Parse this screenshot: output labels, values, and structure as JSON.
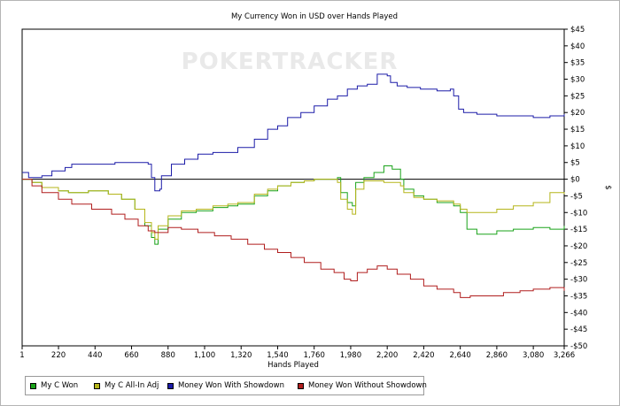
{
  "chart_data": {
    "type": "line",
    "title": "My Currency Won in USD over Hands Played",
    "watermark": "POKERTRACKER",
    "xlabel": "Hands Played",
    "ylabel": "$",
    "xlim": [
      1,
      3266
    ],
    "ylim": [
      -50,
      45
    ],
    "x_ticks": [
      {
        "value": 1,
        "label": "1"
      },
      {
        "value": 220,
        "label": "220"
      },
      {
        "value": 440,
        "label": "440"
      },
      {
        "value": 660,
        "label": "660"
      },
      {
        "value": 880,
        "label": "880"
      },
      {
        "value": 1100,
        "label": "1,100"
      },
      {
        "value": 1320,
        "label": "1,320"
      },
      {
        "value": 1540,
        "label": "1,540"
      },
      {
        "value": 1760,
        "label": "1,760"
      },
      {
        "value": 1980,
        "label": "1,980"
      },
      {
        "value": 2200,
        "label": "2,200"
      },
      {
        "value": 2420,
        "label": "2,420"
      },
      {
        "value": 2640,
        "label": "2,640"
      },
      {
        "value": 2860,
        "label": "2,860"
      },
      {
        "value": 3080,
        "label": "3,080"
      },
      {
        "value": 3266,
        "label": "3,266"
      }
    ],
    "y_ticks": [
      {
        "value": 45,
        "label": "$45"
      },
      {
        "value": 40,
        "label": "$40"
      },
      {
        "value": 35,
        "label": "$35"
      },
      {
        "value": 30,
        "label": "$30"
      },
      {
        "value": 25,
        "label": "$25"
      },
      {
        "value": 20,
        "label": "$20"
      },
      {
        "value": 15,
        "label": "$15"
      },
      {
        "value": 10,
        "label": "$10"
      },
      {
        "value": 5,
        "label": "$5"
      },
      {
        "value": 0,
        "label": "$0"
      },
      {
        "value": -5,
        "label": "-$5"
      },
      {
        "value": -10,
        "label": "-$10"
      },
      {
        "value": -15,
        "label": "-$15"
      },
      {
        "value": -20,
        "label": "-$20"
      },
      {
        "value": -25,
        "label": "-$25"
      },
      {
        "value": -30,
        "label": "-$30"
      },
      {
        "value": -35,
        "label": "-$35"
      },
      {
        "value": -40,
        "label": "-$40"
      },
      {
        "value": -45,
        "label": "-$45"
      },
      {
        "value": -50,
        "label": "-$50"
      }
    ],
    "grid": false,
    "zero_line": true,
    "legend_position": "bottom-left",
    "series": [
      {
        "name": "My C Won",
        "color": "#1aa31a",
        "points": [
          [
            1,
            0
          ],
          [
            60,
            -1
          ],
          [
            120,
            -2.5
          ],
          [
            220,
            -3.5
          ],
          [
            280,
            -4
          ],
          [
            400,
            -3.5
          ],
          [
            520,
            -4.5
          ],
          [
            600,
            -6
          ],
          [
            680,
            -9
          ],
          [
            740,
            -14
          ],
          [
            780,
            -17.5
          ],
          [
            800,
            -19.5
          ],
          [
            820,
            -15
          ],
          [
            880,
            -12
          ],
          [
            960,
            -10
          ],
          [
            1050,
            -9.5
          ],
          [
            1150,
            -8.5
          ],
          [
            1240,
            -8
          ],
          [
            1300,
            -7.5
          ],
          [
            1400,
            -5
          ],
          [
            1480,
            -3.5
          ],
          [
            1540,
            -2
          ],
          [
            1620,
            -1
          ],
          [
            1700,
            -0.5
          ],
          [
            1760,
            0
          ],
          [
            1860,
            0
          ],
          [
            1900,
            0.5
          ],
          [
            1920,
            -4
          ],
          [
            1960,
            -7
          ],
          [
            1990,
            -8
          ],
          [
            2010,
            -1
          ],
          [
            2060,
            0.5
          ],
          [
            2120,
            2
          ],
          [
            2180,
            4
          ],
          [
            2230,
            3
          ],
          [
            2280,
            0
          ],
          [
            2300,
            -3
          ],
          [
            2360,
            -5
          ],
          [
            2420,
            -6
          ],
          [
            2500,
            -7
          ],
          [
            2600,
            -8
          ],
          [
            2640,
            -10
          ],
          [
            2680,
            -15
          ],
          [
            2740,
            -16.5
          ],
          [
            2860,
            -15.5
          ],
          [
            2960,
            -15
          ],
          [
            3080,
            -14.5
          ],
          [
            3180,
            -15
          ],
          [
            3266,
            -14
          ]
        ]
      },
      {
        "name": "My C All-In Adj",
        "color": "#b5b51a",
        "points": [
          [
            1,
            0
          ],
          [
            60,
            -1
          ],
          [
            120,
            -2.5
          ],
          [
            220,
            -3.5
          ],
          [
            280,
            -4
          ],
          [
            400,
            -3.5
          ],
          [
            520,
            -4.5
          ],
          [
            600,
            -6
          ],
          [
            680,
            -9
          ],
          [
            740,
            -13
          ],
          [
            780,
            -16
          ],
          [
            800,
            -18
          ],
          [
            820,
            -14
          ],
          [
            880,
            -11
          ],
          [
            960,
            -9.5
          ],
          [
            1050,
            -9
          ],
          [
            1150,
            -8
          ],
          [
            1240,
            -7.5
          ],
          [
            1300,
            -7
          ],
          [
            1400,
            -4.5
          ],
          [
            1480,
            -3
          ],
          [
            1540,
            -2
          ],
          [
            1620,
            -1
          ],
          [
            1700,
            -0.5
          ],
          [
            1760,
            0
          ],
          [
            1860,
            0
          ],
          [
            1900,
            -1
          ],
          [
            1920,
            -6
          ],
          [
            1960,
            -9
          ],
          [
            1990,
            -10.5
          ],
          [
            2010,
            -3
          ],
          [
            2060,
            -0.5
          ],
          [
            2120,
            -0.5
          ],
          [
            2180,
            -1
          ],
          [
            2230,
            -1
          ],
          [
            2280,
            -2
          ],
          [
            2300,
            -4
          ],
          [
            2360,
            -5.5
          ],
          [
            2420,
            -6
          ],
          [
            2500,
            -6.5
          ],
          [
            2600,
            -7.5
          ],
          [
            2640,
            -9
          ],
          [
            2680,
            -10
          ],
          [
            2740,
            -10
          ],
          [
            2860,
            -9
          ],
          [
            2960,
            -8
          ],
          [
            3080,
            -7
          ],
          [
            3180,
            -4
          ],
          [
            3266,
            -4.5
          ]
        ]
      },
      {
        "name": "Money Won With Showdown",
        "color": "#1c1ca8",
        "points": [
          [
            1,
            2
          ],
          [
            40,
            0.5
          ],
          [
            120,
            1
          ],
          [
            180,
            2.5
          ],
          [
            260,
            3.5
          ],
          [
            300,
            4.5
          ],
          [
            420,
            4.5
          ],
          [
            560,
            5
          ],
          [
            700,
            5
          ],
          [
            760,
            4.5
          ],
          [
            780,
            0.5
          ],
          [
            800,
            -3.5
          ],
          [
            830,
            -3
          ],
          [
            840,
            1
          ],
          [
            900,
            4.5
          ],
          [
            980,
            6
          ],
          [
            1060,
            7.5
          ],
          [
            1150,
            8
          ],
          [
            1240,
            8
          ],
          [
            1300,
            9.5
          ],
          [
            1400,
            12
          ],
          [
            1480,
            15
          ],
          [
            1540,
            16
          ],
          [
            1600,
            18.5
          ],
          [
            1680,
            20
          ],
          [
            1760,
            22
          ],
          [
            1840,
            24
          ],
          [
            1900,
            25
          ],
          [
            1960,
            27
          ],
          [
            2020,
            28
          ],
          [
            2080,
            28.5
          ],
          [
            2140,
            31.5
          ],
          [
            2200,
            31
          ],
          [
            2220,
            29
          ],
          [
            2260,
            28
          ],
          [
            2320,
            27.5
          ],
          [
            2400,
            27
          ],
          [
            2500,
            26.5
          ],
          [
            2580,
            27
          ],
          [
            2600,
            25
          ],
          [
            2630,
            21
          ],
          [
            2660,
            20
          ],
          [
            2740,
            19.5
          ],
          [
            2860,
            19
          ],
          [
            3000,
            19
          ],
          [
            3080,
            18.5
          ],
          [
            3180,
            19
          ],
          [
            3266,
            19.5
          ]
        ]
      },
      {
        "name": "Money Won Without Showdown",
        "color": "#b01e1e",
        "points": [
          [
            1,
            0
          ],
          [
            60,
            -2
          ],
          [
            120,
            -4
          ],
          [
            220,
            -6
          ],
          [
            300,
            -7.5
          ],
          [
            420,
            -9
          ],
          [
            540,
            -10.5
          ],
          [
            620,
            -12
          ],
          [
            700,
            -14
          ],
          [
            760,
            -15.5
          ],
          [
            800,
            -16
          ],
          [
            880,
            -14.5
          ],
          [
            960,
            -15
          ],
          [
            1060,
            -16
          ],
          [
            1160,
            -17
          ],
          [
            1260,
            -18
          ],
          [
            1360,
            -19.5
          ],
          [
            1460,
            -21
          ],
          [
            1540,
            -22
          ],
          [
            1620,
            -23.5
          ],
          [
            1700,
            -25
          ],
          [
            1800,
            -27
          ],
          [
            1880,
            -28
          ],
          [
            1940,
            -30
          ],
          [
            1980,
            -30.5
          ],
          [
            2020,
            -28
          ],
          [
            2080,
            -27
          ],
          [
            2140,
            -26
          ],
          [
            2200,
            -27
          ],
          [
            2260,
            -28.5
          ],
          [
            2340,
            -30
          ],
          [
            2420,
            -32
          ],
          [
            2500,
            -33
          ],
          [
            2600,
            -34
          ],
          [
            2640,
            -35.5
          ],
          [
            2700,
            -35
          ],
          [
            2800,
            -35
          ],
          [
            2900,
            -34
          ],
          [
            3000,
            -33.5
          ],
          [
            3080,
            -33
          ],
          [
            3180,
            -32.5
          ],
          [
            3266,
            -33.5
          ]
        ]
      }
    ]
  }
}
